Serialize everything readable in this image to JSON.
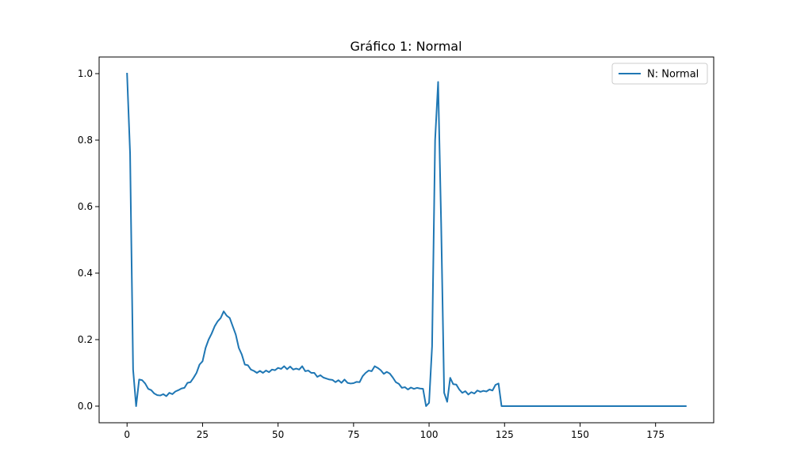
{
  "chart_data": {
    "type": "line",
    "title": "Gráfico 1: Normal",
    "xlabel": "",
    "ylabel": "",
    "xlim": [
      -9.25,
      194.25
    ],
    "ylim": [
      -0.05,
      1.05
    ],
    "xticks": [
      0,
      25,
      50,
      75,
      100,
      125,
      150,
      175
    ],
    "xtick_labels": [
      "0",
      "25",
      "50",
      "75",
      "100",
      "125",
      "150",
      "175"
    ],
    "yticks": [
      0.0,
      0.2,
      0.4,
      0.6,
      0.8,
      1.0
    ],
    "ytick_labels": [
      "0.0",
      "0.2",
      "0.4",
      "0.6",
      "0.8",
      "1.0"
    ],
    "grid": false,
    "legend_position": "top-right",
    "series": [
      {
        "name": "N: Normal",
        "color": "#1f77b4",
        "x": [
          0,
          1,
          2,
          3,
          4,
          5,
          6,
          7,
          8,
          9,
          10,
          11,
          12,
          13,
          14,
          15,
          16,
          17,
          18,
          19,
          20,
          21,
          22,
          23,
          24,
          25,
          26,
          27,
          28,
          29,
          30,
          31,
          32,
          33,
          34,
          35,
          36,
          37,
          38,
          39,
          40,
          41,
          42,
          43,
          44,
          45,
          46,
          47,
          48,
          49,
          50,
          51,
          52,
          53,
          54,
          55,
          56,
          57,
          58,
          59,
          60,
          61,
          62,
          63,
          64,
          65,
          66,
          67,
          68,
          69,
          70,
          71,
          72,
          73,
          74,
          75,
          76,
          77,
          78,
          79,
          80,
          81,
          82,
          83,
          84,
          85,
          86,
          87,
          88,
          89,
          90,
          91,
          92,
          93,
          94,
          95,
          96,
          97,
          98,
          99,
          100,
          101,
          102,
          103,
          104,
          105,
          106,
          107,
          108,
          109,
          110,
          111,
          112,
          113,
          114,
          115,
          116,
          117,
          118,
          119,
          120,
          121,
          122,
          123,
          124,
          185
        ],
        "y": [
          1.0,
          0.76,
          0.11,
          0.0,
          0.08,
          0.078,
          0.068,
          0.052,
          0.048,
          0.038,
          0.033,
          0.032,
          0.036,
          0.03,
          0.04,
          0.036,
          0.044,
          0.048,
          0.053,
          0.055,
          0.07,
          0.072,
          0.085,
          0.1,
          0.125,
          0.135,
          0.175,
          0.2,
          0.218,
          0.24,
          0.255,
          0.265,
          0.285,
          0.272,
          0.265,
          0.24,
          0.215,
          0.175,
          0.155,
          0.125,
          0.123,
          0.11,
          0.106,
          0.1,
          0.106,
          0.1,
          0.107,
          0.102,
          0.11,
          0.108,
          0.115,
          0.112,
          0.12,
          0.111,
          0.119,
          0.11,
          0.113,
          0.11,
          0.12,
          0.105,
          0.107,
          0.1,
          0.1,
          0.088,
          0.093,
          0.086,
          0.083,
          0.08,
          0.079,
          0.072,
          0.078,
          0.07,
          0.08,
          0.07,
          0.068,
          0.069,
          0.073,
          0.072,
          0.09,
          0.1,
          0.107,
          0.105,
          0.12,
          0.115,
          0.108,
          0.097,
          0.103,
          0.098,
          0.086,
          0.072,
          0.067,
          0.055,
          0.057,
          0.05,
          0.056,
          0.052,
          0.055,
          0.053,
          0.052,
          0.0,
          0.01,
          0.18,
          0.8,
          0.975,
          0.55,
          0.04,
          0.013,
          0.085,
          0.066,
          0.065,
          0.05,
          0.04,
          0.045,
          0.035,
          0.042,
          0.038,
          0.047,
          0.043,
          0.046,
          0.044,
          0.05,
          0.047,
          0.064,
          0.068,
          0.0,
          0.0
        ]
      }
    ]
  }
}
